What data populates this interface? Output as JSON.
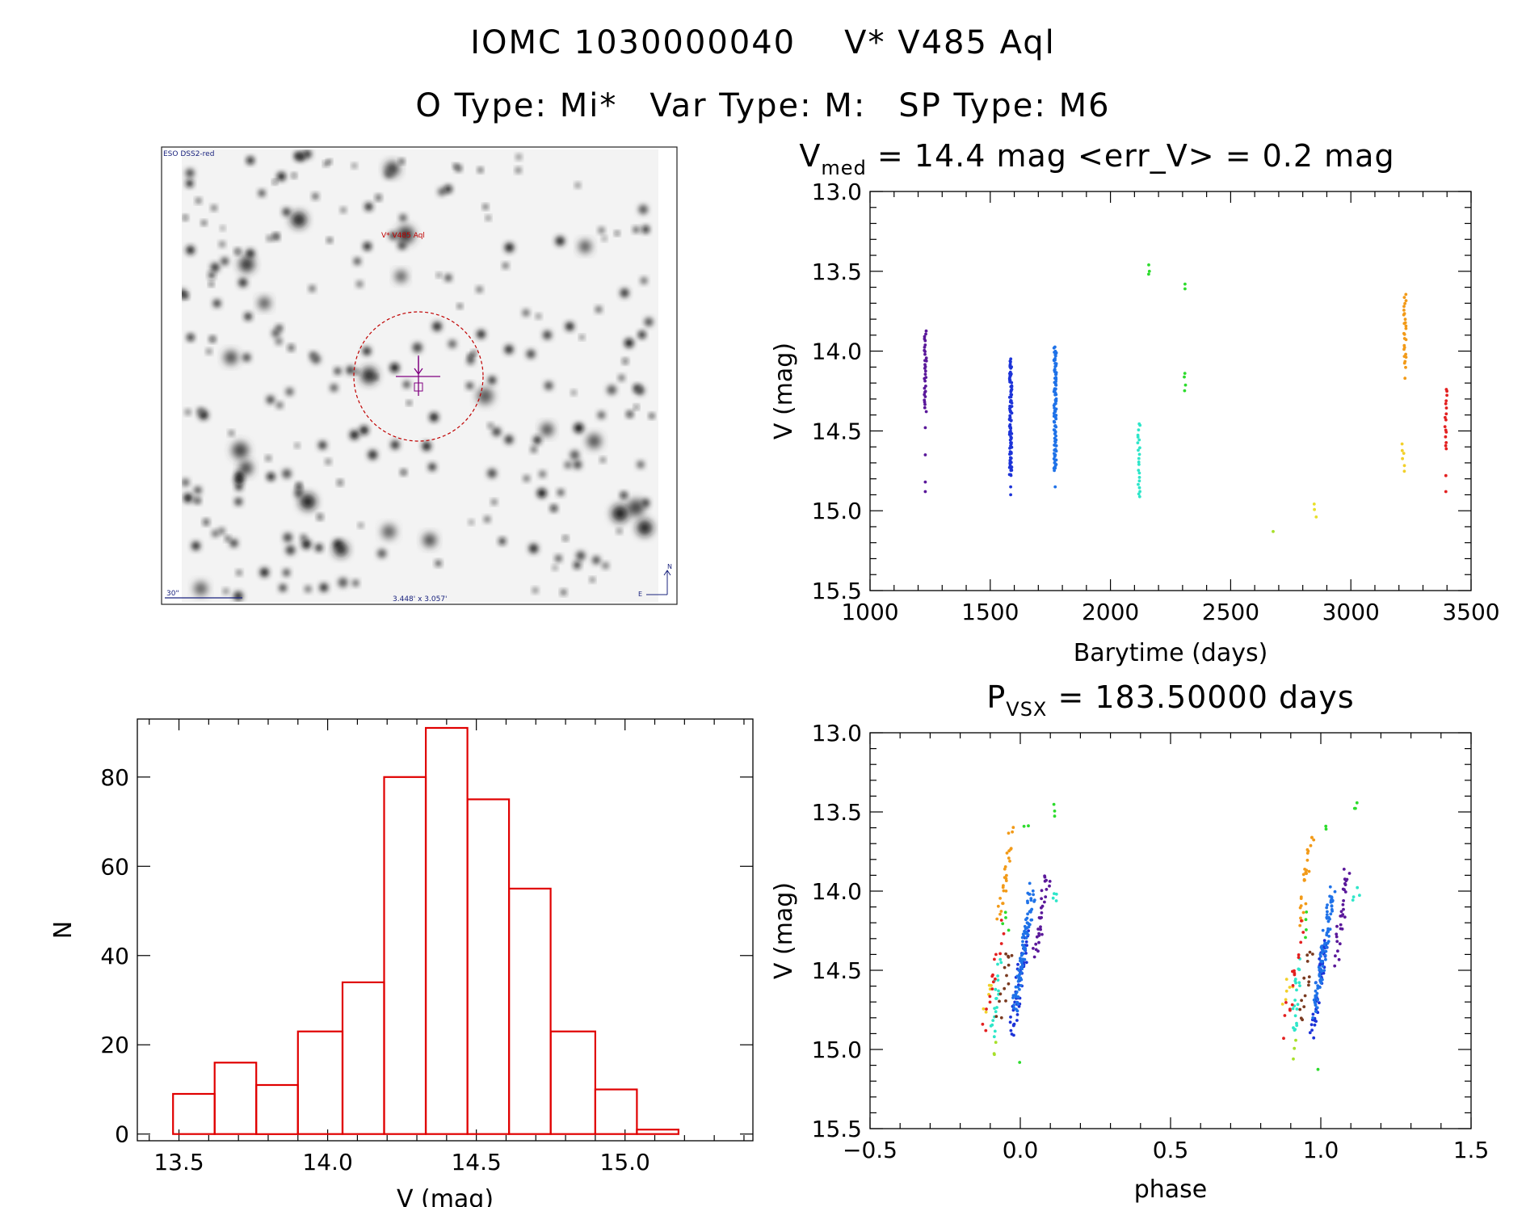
{
  "header": {
    "object_id": "IOMC 1030000040",
    "star_name": "V* V485 Aql",
    "otype": "O Type: Mi*",
    "vartype": "Var Type: M:",
    "sptype": "SP Type: M6"
  },
  "finder": {
    "survey_label": "ESO DSS2-red",
    "target_label": "V* V485 Aql",
    "scale_label": "30\"",
    "fov_label": "3.448' x 3.057'",
    "north_label": "N",
    "east_label": "E"
  },
  "chart_data": [
    {
      "id": "lightcurve",
      "type": "scatter",
      "title_main": "V",
      "title_sub": "med",
      "title_rest": " = 14.4 mag <err_V> = 0.2 mag",
      "xlabel": "Barytime (days)",
      "ylabel": "V (mag)",
      "xlim": [
        1000,
        3500
      ],
      "ylim": [
        15.5,
        13.0
      ],
      "xticks": [
        "1000",
        "1500",
        "2000",
        "2500",
        "3000",
        "3500"
      ],
      "yticks": [
        "13.0",
        "13.5",
        "14.0",
        "14.5",
        "15.0",
        "15.5"
      ],
      "groups": [
        {
          "x": 1230,
          "ymin": 13.88,
          "ymax": 14.37,
          "extra": [
            14.48,
            14.65,
            14.82,
            14.88
          ],
          "n": 32,
          "color": "#5a189a"
        },
        {
          "x": 1585,
          "ymin": 14.05,
          "ymax": 14.78,
          "extra": [
            14.85,
            14.9
          ],
          "n": 90,
          "color": "#1c33d8"
        },
        {
          "x": 1770,
          "ymin": 13.98,
          "ymax": 14.75,
          "extra": [
            14.85
          ],
          "n": 100,
          "color": "#1f72e8"
        },
        {
          "x": 2118,
          "ymin": 14.45,
          "ymax": 14.92,
          "extra": [],
          "n": 22,
          "color": "#2ee6c9"
        },
        {
          "x": 2160,
          "ymin": 13.47,
          "ymax": 13.52,
          "extra": [],
          "n": 3,
          "color": "#2ddc2d"
        },
        {
          "x": 2310,
          "ymin": 14.13,
          "ymax": 14.24,
          "extra": [
            13.58,
            13.61
          ],
          "n": 4,
          "color": "#2ddc2d"
        },
        {
          "x": 2680,
          "ymin": 15.13,
          "ymax": 15.13,
          "extra": [],
          "n": 1,
          "color": "#a7e02a"
        },
        {
          "x": 2852,
          "ymin": 14.96,
          "ymax": 15.04,
          "extra": [],
          "n": 3,
          "color": "#e8e02a"
        },
        {
          "x": 3218,
          "ymin": 14.58,
          "ymax": 14.75,
          "extra": [],
          "n": 6,
          "color": "#f2d02a"
        },
        {
          "x": 3225,
          "ymin": 13.65,
          "ymax": 14.1,
          "extra": [
            14.17
          ],
          "n": 26,
          "color": "#f29a18"
        },
        {
          "x": 3395,
          "ymin": 14.23,
          "ymax": 14.62,
          "extra": [
            14.78,
            14.88
          ],
          "n": 16,
          "color": "#e32020"
        }
      ]
    },
    {
      "id": "histogram",
      "type": "bar",
      "xlabel": "V (mag)",
      "ylabel": "N",
      "xlim": [
        13.36,
        15.43
      ],
      "ylim": [
        -1.5,
        93
      ],
      "xticks": [
        "13.5",
        "14.0",
        "14.5",
        "15.0"
      ],
      "yticks": [
        "0",
        "20",
        "40",
        "60",
        "80"
      ],
      "bin_edges": [
        13.48,
        13.62,
        13.76,
        13.9,
        14.05,
        14.19,
        14.33,
        14.47,
        14.61,
        14.75,
        14.9,
        15.04,
        15.18
      ],
      "counts": [
        9,
        16,
        11,
        23,
        34,
        80,
        91,
        75,
        55,
        23,
        10,
        1
      ],
      "bar_color": "#e00000"
    },
    {
      "id": "phasecurve",
      "type": "scatter",
      "title_main": "P",
      "title_sub": "VSX",
      "title_rest": " = 183.50000 days",
      "xlabel": "phase",
      "ylabel": "V (mag)",
      "xlim": [
        -0.5,
        1.5
      ],
      "ylim": [
        15.5,
        13.0
      ],
      "xticks": [
        "−0.5",
        "0.0",
        "0.5",
        "1.0",
        "1.5"
      ],
      "yticks": [
        "13.0",
        "13.5",
        "14.0",
        "14.5",
        "15.0",
        "15.5"
      ],
      "groups": [
        {
          "x0": 0.05,
          "x1": 0.09,
          "y0": 14.42,
          "y1": 13.88,
          "n": 30,
          "color": "#5a189a"
        },
        {
          "x0": -0.03,
          "x1": 0.02,
          "y0": 14.88,
          "y1": 14.3,
          "n": 50,
          "color": "#1c33d8"
        },
        {
          "x0": -0.02,
          "x1": 0.04,
          "y0": 14.75,
          "y1": 14.0,
          "n": 90,
          "color": "#1f72e8"
        },
        {
          "x0": -0.09,
          "x1": -0.07,
          "y0": 14.92,
          "y1": 14.45,
          "n": 20,
          "color": "#2ee6c9"
        },
        {
          "x0": 0.11,
          "x1": 0.12,
          "y0": 14.07,
          "y1": 13.98,
          "n": 4,
          "color": "#2ee6c9"
        },
        {
          "x0": 0.12,
          "x1": 0.12,
          "y0": 13.52,
          "y1": 13.47,
          "n": 3,
          "color": "#2ddc2d"
        },
        {
          "x0": 0.02,
          "x1": 0.02,
          "y0": 13.61,
          "y1": 13.58,
          "n": 2,
          "color": "#2ddc2d"
        },
        {
          "x0": -0.05,
          "x1": -0.04,
          "y0": 14.25,
          "y1": 14.12,
          "n": 4,
          "color": "#2ddc2d"
        },
        {
          "x0": -0.01,
          "x1": -0.01,
          "y0": 15.13,
          "y1": 15.13,
          "n": 1,
          "color": "#2ddc2d"
        },
        {
          "x0": -0.09,
          "x1": -0.08,
          "y0": 15.04,
          "y1": 14.96,
          "n": 3,
          "color": "#a7e02a"
        },
        {
          "x0": -0.12,
          "x1": -0.1,
          "y0": 14.75,
          "y1": 14.58,
          "n": 6,
          "color": "#f2d02a"
        },
        {
          "x0": -0.07,
          "x1": -0.03,
          "y0": 14.17,
          "y1": 13.65,
          "n": 26,
          "color": "#f29a18"
        },
        {
          "x0": -0.12,
          "x1": -0.06,
          "y0": 14.88,
          "y1": 14.23,
          "n": 16,
          "color": "#e32020"
        },
        {
          "x0": -0.07,
          "x1": -0.03,
          "y0": 14.8,
          "y1": 14.35,
          "n": 14,
          "color": "#7a3a20"
        }
      ]
    }
  ]
}
